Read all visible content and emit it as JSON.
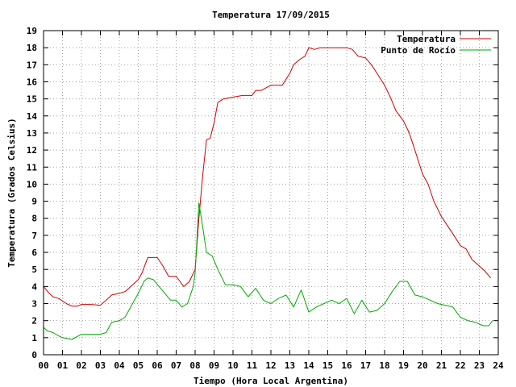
{
  "chart_data": {
    "type": "line",
    "title": "Temperatura 17/09/2015",
    "xlabel": "Tiempo (Hora Local Argentina)",
    "ylabel": "Temperatura (Grados Celsius)",
    "xlim": [
      0,
      24
    ],
    "ylim": [
      0,
      19
    ],
    "grid": true,
    "legend_position": "top-right",
    "x_ticks": [
      "00",
      "01",
      "02",
      "03",
      "04",
      "05",
      "06",
      "07",
      "08",
      "09",
      "10",
      "11",
      "12",
      "13",
      "14",
      "15",
      "16",
      "17",
      "18",
      "19",
      "20",
      "21",
      "22",
      "23",
      "24"
    ],
    "y_ticks": [
      "0",
      "1",
      "2",
      "3",
      "4",
      "5",
      "6",
      "7",
      "8",
      "9",
      "10",
      "11",
      "12",
      "13",
      "14",
      "15",
      "16",
      "17",
      "18",
      "19"
    ],
    "series": [
      {
        "name": "Temperatura",
        "color": "#cc0000",
        "x": [
          0.0,
          0.3,
          0.5,
          0.8,
          1.2,
          1.5,
          1.8,
          2.0,
          2.5,
          3.0,
          3.4,
          3.6,
          4.0,
          4.3,
          4.6,
          5.0,
          5.2,
          5.5,
          6.0,
          6.3,
          6.6,
          7.0,
          7.2,
          7.4,
          7.7,
          8.0,
          8.2,
          8.4,
          8.6,
          8.8,
          9.0,
          9.2,
          9.5,
          10.0,
          10.5,
          11.0,
          11.2,
          11.5,
          12.0,
          12.3,
          12.6,
          13.0,
          13.2,
          13.5,
          13.8,
          14.0,
          14.3,
          14.6,
          15.0,
          15.5,
          16.0,
          16.3,
          16.6,
          17.0,
          17.3,
          17.6,
          18.0,
          18.3,
          18.6,
          19.0,
          19.3,
          19.6,
          20.0,
          20.3,
          20.6,
          21.0,
          21.3,
          21.6,
          22.0,
          22.3,
          22.6,
          23.0,
          23.3,
          23.6
        ],
        "values": [
          4.0,
          3.6,
          3.4,
          3.3,
          3.0,
          2.85,
          2.85,
          2.95,
          2.95,
          2.9,
          3.3,
          3.5,
          3.6,
          3.7,
          4.0,
          4.4,
          4.8,
          5.7,
          5.7,
          5.2,
          4.6,
          4.6,
          4.3,
          4.0,
          4.3,
          5.0,
          8.0,
          10.5,
          12.6,
          12.7,
          13.6,
          14.8,
          15.0,
          15.1,
          15.2,
          15.2,
          15.5,
          15.5,
          15.8,
          15.8,
          15.8,
          16.5,
          17.0,
          17.3,
          17.5,
          18.0,
          17.9,
          18.0,
          18.0,
          18.0,
          18.0,
          17.9,
          17.5,
          17.4,
          17.0,
          16.5,
          15.8,
          15.1,
          14.3,
          13.7,
          13.0,
          12.0,
          10.6,
          10.0,
          9.0,
          8.1,
          7.6,
          7.1,
          6.4,
          6.2,
          5.6,
          5.2,
          4.9,
          4.5
        ]
      },
      {
        "name": "Punto de Rocío",
        "color": "#00aa00",
        "x": [
          0.0,
          0.2,
          0.5,
          0.8,
          1.0,
          1.5,
          2.0,
          2.5,
          3.0,
          3.3,
          3.6,
          4.0,
          4.3,
          4.6,
          5.0,
          5.3,
          5.5,
          5.8,
          6.1,
          6.4,
          6.7,
          7.0,
          7.3,
          7.6,
          7.9,
          8.0,
          8.2,
          8.4,
          8.6,
          8.9,
          9.2,
          9.6,
          10.0,
          10.4,
          10.8,
          11.2,
          11.6,
          12.0,
          12.4,
          12.8,
          13.2,
          13.6,
          14.0,
          14.4,
          14.8,
          15.2,
          15.6,
          16.0,
          16.4,
          16.8,
          17.2,
          17.6,
          18.0,
          18.4,
          18.8,
          19.2,
          19.6,
          20.0,
          20.4,
          20.8,
          21.2,
          21.6,
          22.0,
          22.4,
          22.8,
          23.2,
          23.5,
          23.7
        ],
        "values": [
          1.6,
          1.4,
          1.3,
          1.1,
          1.0,
          0.9,
          1.2,
          1.2,
          1.2,
          1.3,
          1.9,
          2.0,
          2.2,
          2.8,
          3.6,
          4.3,
          4.5,
          4.4,
          4.0,
          3.6,
          3.2,
          3.2,
          2.8,
          3.0,
          4.0,
          4.8,
          8.9,
          7.5,
          6.0,
          5.8,
          5.0,
          4.1,
          4.1,
          4.0,
          3.4,
          3.9,
          3.2,
          3.0,
          3.3,
          3.5,
          2.8,
          3.8,
          2.5,
          2.8,
          3.0,
          3.2,
          3.0,
          3.3,
          2.4,
          3.2,
          2.5,
          2.6,
          3.0,
          3.7,
          4.3,
          4.3,
          3.5,
          3.4,
          3.2,
          3.0,
          2.9,
          2.8,
          2.2,
          2.0,
          1.9,
          1.7,
          1.7,
          2.0
        ]
      }
    ]
  }
}
